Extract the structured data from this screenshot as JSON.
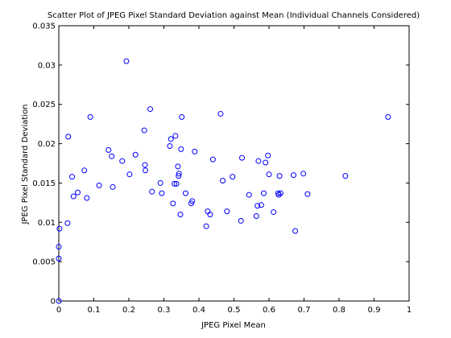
{
  "chart_data": {
    "type": "scatter",
    "title": "Scatter Plot of JPEG Pixel Standard Deviation against Mean (Individual Channels Considered)",
    "xlabel": "JPEG Pixel Mean",
    "ylabel": "JPEG Pixel Standard Deviation",
    "xlim": [
      0,
      1
    ],
    "ylim": [
      0,
      0.035
    ],
    "xticks": [
      "0",
      "0.1",
      "0.2",
      "0.3",
      "0.4",
      "0.5",
      "0.6",
      "0.7",
      "0.8",
      "0.9",
      "1"
    ],
    "yticks": [
      "0",
      "0.005",
      "0.01",
      "0.015",
      "0.02",
      "0.025",
      "0.03",
      "0.035"
    ],
    "grid": false,
    "marker_color": "#0000ff",
    "marker": "circle-open",
    "points": [
      [
        0.0,
        0.0
      ],
      [
        0.0,
        0.0054
      ],
      [
        0.0,
        0.0069
      ],
      [
        0.002,
        0.0092
      ],
      [
        0.025,
        0.0099
      ],
      [
        0.027,
        0.0209
      ],
      [
        0.038,
        0.0158
      ],
      [
        0.042,
        0.0133
      ],
      [
        0.054,
        0.0138
      ],
      [
        0.073,
        0.0166
      ],
      [
        0.08,
        0.0131
      ],
      [
        0.09,
        0.0234
      ],
      [
        0.115,
        0.0147
      ],
      [
        0.142,
        0.0192
      ],
      [
        0.151,
        0.0184
      ],
      [
        0.154,
        0.0145
      ],
      [
        0.181,
        0.0178
      ],
      [
        0.193,
        0.0305
      ],
      [
        0.202,
        0.0161
      ],
      [
        0.219,
        0.0186
      ],
      [
        0.244,
        0.0217
      ],
      [
        0.246,
        0.0173
      ],
      [
        0.247,
        0.0166
      ],
      [
        0.261,
        0.0244
      ],
      [
        0.266,
        0.0139
      ],
      [
        0.29,
        0.015
      ],
      [
        0.294,
        0.0137
      ],
      [
        0.317,
        0.0197
      ],
      [
        0.32,
        0.0206
      ],
      [
        0.326,
        0.0124
      ],
      [
        0.33,
        0.0149
      ],
      [
        0.333,
        0.021
      ],
      [
        0.336,
        0.0149
      ],
      [
        0.34,
        0.0171
      ],
      [
        0.342,
        0.0159
      ],
      [
        0.343,
        0.0162
      ],
      [
        0.347,
        0.011
      ],
      [
        0.349,
        0.0193
      ],
      [
        0.351,
        0.0234
      ],
      [
        0.362,
        0.0137
      ],
      [
        0.378,
        0.0124
      ],
      [
        0.381,
        0.0127
      ],
      [
        0.388,
        0.019
      ],
      [
        0.421,
        0.0095
      ],
      [
        0.425,
        0.0114
      ],
      [
        0.432,
        0.011
      ],
      [
        0.44,
        0.018
      ],
      [
        0.462,
        0.0238
      ],
      [
        0.468,
        0.0153
      ],
      [
        0.48,
        0.0114
      ],
      [
        0.496,
        0.0158
      ],
      [
        0.52,
        0.0102
      ],
      [
        0.523,
        0.0182
      ],
      [
        0.543,
        0.0135
      ],
      [
        0.564,
        0.0108
      ],
      [
        0.567,
        0.0121
      ],
      [
        0.57,
        0.0178
      ],
      [
        0.578,
        0.0122
      ],
      [
        0.585,
        0.0137
      ],
      [
        0.59,
        0.0176
      ],
      [
        0.597,
        0.0185
      ],
      [
        0.6,
        0.0161
      ],
      [
        0.613,
        0.0113
      ],
      [
        0.626,
        0.0137
      ],
      [
        0.628,
        0.0135
      ],
      [
        0.63,
        0.0159
      ],
      [
        0.633,
        0.0137
      ],
      [
        0.67,
        0.016
      ],
      [
        0.675,
        0.0089
      ],
      [
        0.698,
        0.0162
      ],
      [
        0.71,
        0.0136
      ],
      [
        0.818,
        0.0159
      ],
      [
        0.94,
        0.0234
      ]
    ]
  }
}
